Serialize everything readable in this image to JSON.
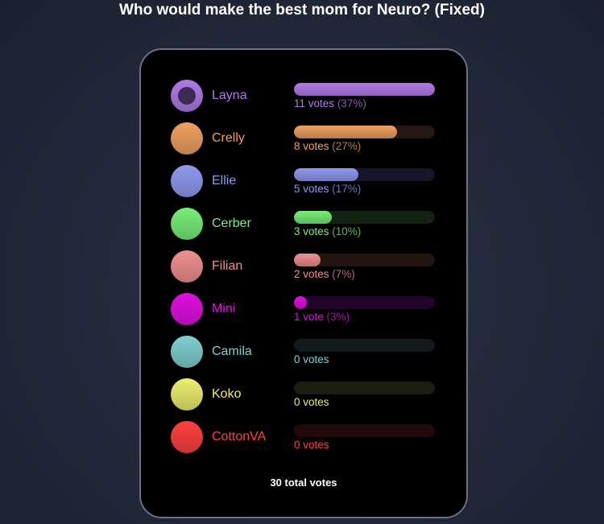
{
  "title": "Who would make the best mom for Neuro? (Fixed)",
  "options": [
    {
      "name": "Layna",
      "votes_label": "11 votes",
      "pct_label": "(37%)",
      "percent": 37,
      "color": "#b07ae8",
      "track": "#2a1d3a",
      "selected": true
    },
    {
      "name": "Crelly",
      "votes_label": "8 votes",
      "pct_label": "(27%)",
      "percent": 27,
      "color": "#f0a060",
      "track": "#241810"
    },
    {
      "name": "Ellie",
      "votes_label": "5 votes",
      "pct_label": "(17%)",
      "percent": 17,
      "color": "#8f9af0",
      "track": "#15162a"
    },
    {
      "name": "Cerber",
      "votes_label": "3 votes",
      "pct_label": "(10%)",
      "percent": 10,
      "color": "#78ee78",
      "track": "#132213"
    },
    {
      "name": "Filian",
      "votes_label": "2 votes",
      "pct_label": "(7%)",
      "percent": 7,
      "color": "#f09090",
      "track": "#241515"
    },
    {
      "name": "Mini",
      "votes_label": "1 vote",
      "pct_label": "(3%)",
      "percent": 3,
      "color": "#e010e0",
      "track": "#22042a"
    },
    {
      "name": "Camila",
      "votes_label": "0 votes",
      "pct_label": "",
      "percent": 0,
      "color": "#80d0d0",
      "track": "#111a1c"
    },
    {
      "name": "Koko",
      "votes_label": "0 votes",
      "pct_label": "",
      "percent": 0,
      "color": "#eeee70",
      "track": "#1c1c10"
    },
    {
      "name": "CottonVA",
      "votes_label": "0 votes",
      "pct_label": "",
      "percent": 0,
      "color": "#ff4040",
      "track": "#220a0a"
    }
  ],
  "total_label": "30 total votes"
}
